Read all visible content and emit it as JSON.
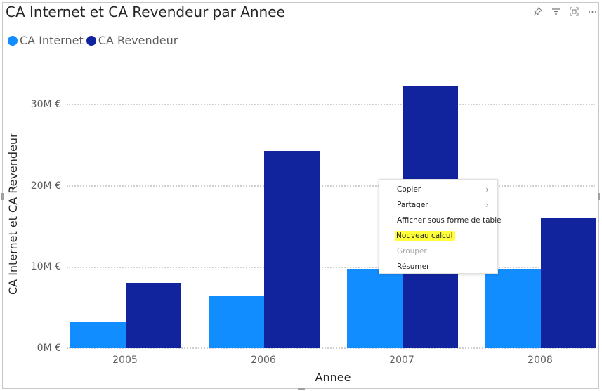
{
  "visual": {
    "title": "CA Internet et CA Revendeur par Annee",
    "header_icons": [
      "pin-icon",
      "filter-icon",
      "focus-mode-icon",
      "more-options-icon"
    ]
  },
  "legend": {
    "items": [
      {
        "label": "CA Internet",
        "color": "#118dff"
      },
      {
        "label": "CA Revendeur",
        "color": "#12239e"
      }
    ]
  },
  "axes": {
    "y_label": "CA Internet et CA Revendeur",
    "x_label": "Annee",
    "y_ticks": [
      "0M €",
      "10M €",
      "20M €",
      "30M €"
    ],
    "x_ticks": [
      "2005",
      "2006",
      "2007",
      "2008"
    ]
  },
  "context_menu": {
    "items": [
      {
        "label": "Copier",
        "submenu": true,
        "disabled": false,
        "highlighted": false
      },
      {
        "label": "Partager",
        "submenu": true,
        "disabled": false,
        "highlighted": false
      },
      {
        "label": "Afficher sous forme de table",
        "submenu": false,
        "disabled": false,
        "highlighted": false
      },
      {
        "label": "Nouveau calcul",
        "submenu": false,
        "disabled": false,
        "highlighted": true
      },
      {
        "label": "Grouper",
        "submenu": false,
        "disabled": true,
        "highlighted": false
      },
      {
        "label": "Résumer",
        "submenu": false,
        "disabled": false,
        "highlighted": false
      }
    ],
    "highlight_color": "#ffff3a"
  },
  "chart_data": {
    "type": "bar",
    "title": "CA Internet et CA Revendeur par Annee",
    "xlabel": "Annee",
    "ylabel": "CA Internet et CA Revendeur",
    "categories": [
      "2005",
      "2006",
      "2007",
      "2008"
    ],
    "series": [
      {
        "name": "CA Internet",
        "color": "#118dff",
        "values": [
          3.3,
          6.5,
          9.8,
          9.8
        ]
      },
      {
        "name": "CA Revendeur",
        "color": "#12239e",
        "values": [
          8.0,
          24.3,
          32.3,
          16.1
        ]
      }
    ],
    "units": "M €",
    "ylim": [
      0,
      35
    ],
    "y_ticks": [
      0,
      10,
      20,
      30
    ],
    "grid": true,
    "legend_position": "top-left"
  }
}
